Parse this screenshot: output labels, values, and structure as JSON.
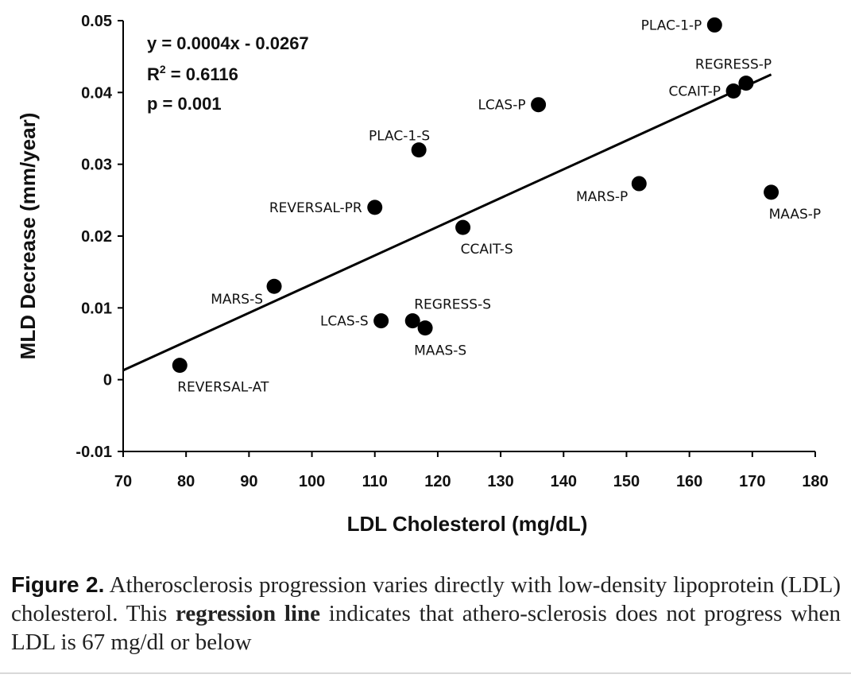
{
  "chart_data": {
    "type": "scatter",
    "xlabel": "LDL Cholesterol (mg/dL)",
    "ylabel": "MLD Decrease (mm/year)",
    "xlim": [
      70,
      180
    ],
    "ylim": [
      -0.01,
      0.05
    ],
    "x_ticks": [
      "70",
      "80",
      "90",
      "100",
      "110",
      "120",
      "130",
      "140",
      "150",
      "160",
      "170",
      "180"
    ],
    "x_tick_values": [
      70,
      80,
      90,
      100,
      110,
      120,
      130,
      140,
      150,
      160,
      170,
      180
    ],
    "y_ticks": [
      "-0.01",
      "0",
      "0.01",
      "0.02",
      "0.03",
      "0.04",
      "0.05"
    ],
    "y_tick_values": [
      -0.01,
      0,
      0.01,
      0.02,
      0.03,
      0.04,
      0.05
    ],
    "grid": false,
    "points": [
      {
        "label": "REVERSAL-AT",
        "x": 79,
        "y": 0.002,
        "label_pos": "below-right"
      },
      {
        "label": "MARS-S",
        "x": 94,
        "y": 0.013,
        "label_pos": "left-below"
      },
      {
        "label": "REVERSAL-PR",
        "x": 110,
        "y": 0.024,
        "label_pos": "left"
      },
      {
        "label": "LCAS-S",
        "x": 111,
        "y": 0.0082,
        "label_pos": "left"
      },
      {
        "label": "REGRESS-S",
        "x": 116,
        "y": 0.0082,
        "label_pos": "above-right"
      },
      {
        "label": "MAAS-S",
        "x": 118,
        "y": 0.0072,
        "label_pos": "below"
      },
      {
        "label": "PLAC-1-S",
        "x": 117,
        "y": 0.032,
        "label_pos": "above-left"
      },
      {
        "label": "CCAIT-S",
        "x": 124,
        "y": 0.0212,
        "label_pos": "below-right"
      },
      {
        "label": "LCAS-P",
        "x": 136,
        "y": 0.0383,
        "label_pos": "left"
      },
      {
        "label": "MARS-P",
        "x": 152,
        "y": 0.0273,
        "label_pos": "left-below"
      },
      {
        "label": "PLAC-1-P",
        "x": 164,
        "y": 0.0494,
        "label_pos": "left"
      },
      {
        "label": "CCAIT-P",
        "x": 167,
        "y": 0.0402,
        "label_pos": "left"
      },
      {
        "label": "REGRESS-P",
        "x": 169,
        "y": 0.0413,
        "label_pos": "above"
      },
      {
        "label": "MAAS-P",
        "x": 173,
        "y": 0.0261,
        "label_pos": "below-right"
      }
    ],
    "regression": {
      "slope": 0.0004,
      "intercept": -0.0267,
      "x_start": 70,
      "x_end": 173
    },
    "annotations": {
      "equation": "y = 0.0004x - 0.0267",
      "r2_prefix": "R",
      "r2_sup": "2",
      "r2_rest": " = 0.6116",
      "p_value": "p = 0.001"
    }
  },
  "caption": {
    "figure_label": "Figure 2.",
    "text_before": " Atherosclerosis progression varies directly with low-density lipoprotein (LDL) cholesterol. This ",
    "bold_phrase": "regression line",
    "text_after": " indicates that athero-sclerosis does not progress when LDL is 67 mg/dl or below"
  },
  "style": {
    "dot_color": "#000000",
    "line_color": "#000000"
  }
}
